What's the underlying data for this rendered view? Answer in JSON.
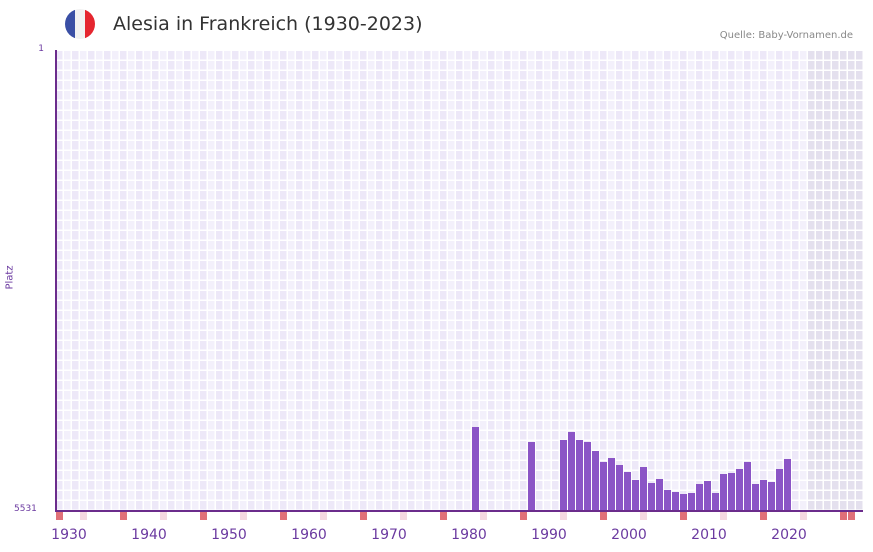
{
  "header": {
    "title": "Alesia in Frankreich (1930-2023)",
    "source": "Quelle: Baby-Vornamen.de",
    "flag_colors": [
      "#3a4fa5",
      "#f2f2f2",
      "#e5262f"
    ]
  },
  "axes": {
    "y_top_label": "1",
    "y_bottom_label": "5531",
    "y_title": "Platz",
    "x_labels": [
      "1930",
      "1940",
      "1950",
      "1960",
      "1970",
      "1980",
      "1990",
      "2000",
      "2010",
      "2020"
    ]
  },
  "colors": {
    "bar": "#8b55c6",
    "axis": "#6b2c8c",
    "decade_marker": "#e07078",
    "half_decade_marker": "#f5d8e0",
    "grid_bg_a": "#ede8f8",
    "grid_bg_b": "#f3f0fb",
    "future_bg": "#e4e0ee"
  },
  "chart_data": {
    "type": "bar",
    "title": "Alesia in Frankreich (1930-2023)",
    "xlabel": "",
    "ylabel": "Platz",
    "y_inverted": true,
    "ylim": [
      5531,
      1
    ],
    "grid": true,
    "x": [
      1982,
      1989,
      1993,
      1994,
      1995,
      1996,
      1997,
      1998,
      1999,
      2000,
      2001,
      2002,
      2003,
      2004,
      2005,
      2006,
      2007,
      2008,
      2009,
      2010,
      2011,
      2012,
      2013,
      2014,
      2015,
      2016,
      2017,
      2018,
      2019,
      2020,
      2021
    ],
    "values": [
      4534,
      4714,
      4690,
      4594,
      4690,
      4714,
      4823,
      4955,
      4907,
      4991,
      5075,
      5172,
      5015,
      5208,
      5160,
      5292,
      5316,
      5340,
      5328,
      5220,
      5184,
      5328,
      5099,
      5087,
      5039,
      4955,
      5220,
      5172,
      5196,
      5039,
      4919
    ],
    "categories_range": [
      1930,
      2029
    ]
  }
}
